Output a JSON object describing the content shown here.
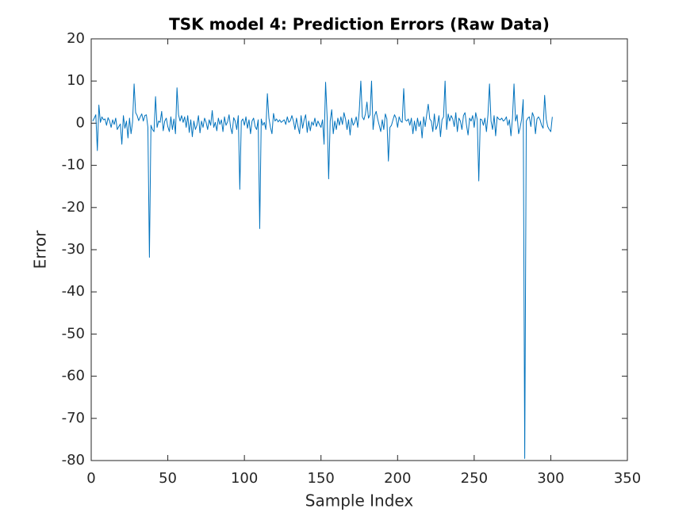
{
  "chart_data": {
    "type": "line",
    "title": "TSK model 4: Prediction Errors (Raw Data)",
    "xlabel": "Sample Index",
    "ylabel": "Error",
    "color": "#0072bd",
    "xlim": [
      0,
      350
    ],
    "xticks": [
      0,
      50,
      100,
      150,
      200,
      250,
      300,
      350
    ],
    "ylim": [
      -80,
      20
    ],
    "yticks": [
      -80,
      -70,
      -60,
      -50,
      -40,
      -30,
      -20,
      -10,
      0,
      10,
      20
    ],
    "grid": false,
    "x": [
      1,
      2,
      3,
      4,
      5,
      6,
      7,
      8,
      9,
      10,
      11,
      12,
      13,
      14,
      15,
      16,
      17,
      18,
      19,
      20,
      21,
      22,
      23,
      24,
      25,
      26,
      27,
      28,
      29,
      30,
      31,
      32,
      33,
      34,
      35,
      36,
      37,
      38,
      39,
      40,
      41,
      42,
      43,
      44,
      45,
      46,
      47,
      48,
      49,
      50,
      51,
      52,
      53,
      54,
      55,
      56,
      57,
      58,
      59,
      60,
      61,
      62,
      63,
      64,
      65,
      66,
      67,
      68,
      69,
      70,
      71,
      72,
      73,
      74,
      75,
      76,
      77,
      78,
      79,
      80,
      81,
      82,
      83,
      84,
      85,
      86,
      87,
      88,
      89,
      90,
      91,
      92,
      93,
      94,
      95,
      96,
      97,
      98,
      99,
      100,
      101,
      102,
      103,
      104,
      105,
      106,
      107,
      108,
      109,
      110,
      111,
      112,
      113,
      114,
      115,
      116,
      117,
      118,
      119,
      120,
      121,
      122,
      123,
      124,
      125,
      126,
      127,
      128,
      129,
      130,
      131,
      132,
      133,
      134,
      135,
      136,
      137,
      138,
      139,
      140,
      141,
      142,
      143,
      144,
      145,
      146,
      147,
      148,
      149,
      150,
      151,
      152,
      153,
      154,
      155,
      156,
      157,
      158,
      159,
      160,
      161,
      162,
      163,
      164,
      165,
      166,
      167,
      168,
      169,
      170,
      171,
      172,
      173,
      174,
      175,
      176,
      177,
      178,
      179,
      180,
      181,
      182,
      183,
      184,
      185,
      186,
      187,
      188,
      189,
      190,
      191,
      192,
      193,
      194,
      195,
      196,
      197,
      198,
      199,
      200,
      201,
      202,
      203,
      204,
      205,
      206,
      207,
      208,
      209,
      210,
      211,
      212,
      213,
      214,
      215,
      216,
      217,
      218,
      219,
      220,
      221,
      222,
      223,
      224,
      225,
      226,
      227,
      228,
      229,
      230,
      231,
      232,
      233,
      234,
      235,
      236,
      237,
      238,
      239,
      240,
      241,
      242,
      243,
      244,
      245,
      246,
      247,
      248,
      249,
      250,
      251,
      252,
      253,
      254,
      255,
      256,
      257,
      258,
      259,
      260,
      261,
      262,
      263,
      264,
      265,
      266,
      267,
      268,
      269,
      270,
      271,
      272,
      273,
      274,
      275,
      276,
      277,
      278,
      279,
      280,
      281,
      282,
      283,
      284,
      285,
      286,
      287,
      288,
      289,
      290,
      291,
      292,
      293,
      294,
      295,
      296,
      297,
      298,
      299,
      300,
      301
    ],
    "values": [
      0.5,
      1.2,
      2.0,
      -6.5,
      4.3,
      0.2,
      1.5,
      0.8,
      1.0,
      -0.5,
      1.3,
      0.5,
      -1.0,
      0.8,
      -0.3,
      1.2,
      -1.5,
      -0.8,
      -0.2,
      -5.0,
      1.8,
      -1.2,
      0.5,
      -3.5,
      1.2,
      -2.5,
      0.3,
      9.3,
      2.5,
      1.8,
      0.6,
      1.5,
      2.2,
      0.5,
      1.8,
      2.0,
      -1.0,
      -31.8,
      -0.5,
      -1.5,
      -2.0,
      6.3,
      -1.0,
      0.5,
      0.2,
      2.8,
      -1.8,
      0.5,
      1.2,
      -0.8,
      -2.0,
      1.5,
      -1.5,
      1.0,
      -2.5,
      8.4,
      2.0,
      0.5,
      1.8,
      0.2,
      1.5,
      -1.0,
      1.8,
      -2.2,
      0.8,
      -3.2,
      0.5,
      -1.5,
      -0.5,
      1.8,
      -2.3,
      0.5,
      -1.0,
      1.2,
      0.2,
      -1.5,
      0.8,
      -0.5,
      3.0,
      -1.0,
      0.2,
      -1.8,
      1.2,
      -0.3,
      0.8,
      -2.0,
      1.5,
      -0.5,
      0.3,
      2.0,
      -1.0,
      -2.5,
      1.3,
      0.5,
      -1.5,
      1.8,
      -15.7,
      0.5,
      1.0,
      -0.5,
      1.5,
      -1.2,
      0.8,
      -2.5,
      0.5,
      1.2,
      -0.8,
      -1.5,
      0.8,
      -25,
      1.0,
      -0.5,
      0.2,
      -1.5,
      7.0,
      1.2,
      -1.0,
      -2.5,
      2.3,
      0.5,
      1.0,
      0.3,
      0.8,
      0.2,
      0.5,
      0.8,
      -0.3,
      1.5,
      0.2,
      0.6,
      1.8,
      0.5,
      -1.5,
      1.2,
      -0.8,
      -2.5,
      1.8,
      -1.2,
      0.8,
      2.0,
      -2.2,
      0.5,
      -1.8,
      0.3,
      -0.5,
      1.2,
      -0.8,
      0.5,
      -0.3,
      -1.0,
      0.8,
      -5.0,
      9.7,
      1.5,
      -13.2,
      0.5,
      3.2,
      -2.5,
      0.5,
      -1.5,
      1.2,
      -0.5,
      1.5,
      -0.3,
      2.5,
      1.0,
      -1.5,
      0.8,
      -2.8,
      1.2,
      -0.5,
      0.2,
      1.5,
      -1.0,
      3.0,
      10.0,
      1.5,
      0.8,
      2.2,
      5.0,
      1.2,
      2.0,
      10.0,
      -1.5,
      1.8,
      2.8,
      1.0,
      -0.5,
      -2.0,
      0.8,
      -1.5,
      2.2,
      1.0,
      -9.0,
      -1.0,
      -0.5,
      0.8,
      2.0,
      1.2,
      -1.0,
      1.5,
      0.5,
      0.2,
      8.2,
      0.8,
      0.5,
      1.0,
      -0.5,
      1.2,
      -2.5,
      0.5,
      -1.8,
      1.2,
      -0.8,
      0.5,
      -3.5,
      1.5,
      -0.8,
      2.0,
      4.5,
      1.0,
      0.5,
      -2.0,
      2.2,
      -1.5,
      -0.5,
      1.8,
      -3.2,
      0.8,
      1.5,
      10.0,
      -1.5,
      2.2,
      0.5,
      1.8,
      1.0,
      -0.8,
      2.5,
      -2.0,
      1.2,
      0.5,
      -1.5,
      1.8,
      2.5,
      -0.5,
      -2.8,
      1.2,
      0.5,
      1.8,
      -1.0,
      2.5,
      0.8,
      -13.7,
      1.0,
      0.8,
      -0.5,
      1.2,
      -2.0,
      2.0,
      9.3,
      0.5,
      -1.5,
      1.8,
      -3.0,
      1.5,
      1.0,
      0.8,
      1.2,
      0.5,
      0.8,
      1.5,
      -0.5,
      0.8,
      -3.0,
      1.2,
      9.3,
      0.5,
      2.0,
      -2.5,
      -1.0,
      1.0,
      5.6,
      -79.5,
      0.5,
      1.2,
      1.5,
      -0.8,
      2.5,
      1.5,
      -2.5,
      1.0,
      1.5,
      0.8,
      -0.5,
      -1.2,
      6.6,
      1.0,
      -0.8,
      -1.5,
      -2.0,
      1.5
    ]
  }
}
